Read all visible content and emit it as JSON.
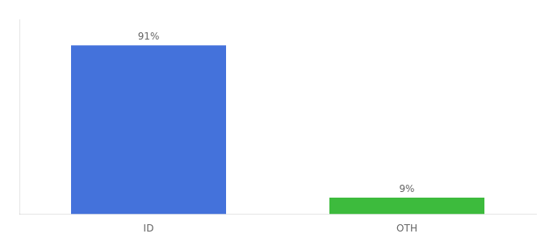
{
  "chart_data": {
    "type": "bar",
    "categories": [
      "ID",
      "OTH"
    ],
    "values": [
      91,
      9
    ],
    "colors": [
      "#4472db",
      "#3dbb3d"
    ],
    "value_labels": [
      "91%",
      "9%"
    ],
    "data_labels": true,
    "ylim": [
      0,
      105
    ],
    "grid": false,
    "tick_labels": "x"
  }
}
